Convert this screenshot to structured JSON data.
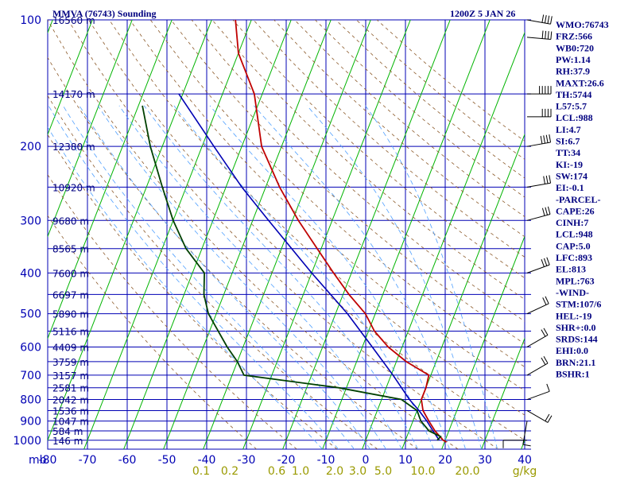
{
  "header": {
    "station_title": "MMVA (76743) Sounding",
    "datetime": "1200Z  5 JAN 26"
  },
  "colors": {
    "grid": "#0000b4",
    "frame": "#000080",
    "isotherm_skew": "#00b400",
    "dry_adiabat": "#8c5a2a",
    "moist_adiabat": "#50a0ff",
    "mixing_ratio_label": "#9a9a00",
    "temperature": "#c00000",
    "dewpoint": "#004000",
    "parcel": "#0000b4",
    "wind": "#000000"
  },
  "chart_data": {
    "type": "skew-t",
    "title": "MMVA (76743) Sounding",
    "pressure_axis_label": "mb",
    "pressure_ticks": [
      100,
      200,
      300,
      400,
      500,
      600,
      700,
      800,
      900,
      1000
    ],
    "pressure_range_mb": [
      100,
      1050
    ],
    "temperature_ticks": [
      "-80",
      "-70",
      "-60",
      "-50",
      "-40",
      "-30",
      "-20",
      "-10",
      "0",
      "10",
      "20",
      "30",
      "40"
    ],
    "temperature_range_c": [
      -80,
      40
    ],
    "mixing_ratio_labels": [
      "0.1",
      "0.2",
      "0.6",
      "1.0",
      "2.0",
      "3.0",
      "5.0",
      "10.0",
      "20.0",
      "g/kg"
    ],
    "mixing_ratio_values_gkg": [
      0.1,
      0.2,
      0.6,
      1.0,
      2.0,
      3.0,
      5.0,
      10.0,
      20.0
    ],
    "height_labels": [
      {
        "p": 100,
        "label": "16560 m"
      },
      {
        "p": 150,
        "label": "14170 m"
      },
      {
        "p": 200,
        "label": "12380 m"
      },
      {
        "p": 250,
        "label": "10920 m"
      },
      {
        "p": 300,
        "label": "9680 m"
      },
      {
        "p": 350,
        "label": "8565 m"
      },
      {
        "p": 400,
        "label": "7600 m"
      },
      {
        "p": 450,
        "label": "6697 m"
      },
      {
        "p": 500,
        "label": "5890 m"
      },
      {
        "p": 550,
        "label": "5116 m"
      },
      {
        "p": 600,
        "label": "4409 m"
      },
      {
        "p": 650,
        "label": "3759 m"
      },
      {
        "p": 700,
        "label": "3157 m"
      },
      {
        "p": 750,
        "label": "2581 m"
      },
      {
        "p": 800,
        "label": "2042 m"
      },
      {
        "p": 850,
        "label": "1536 m"
      },
      {
        "p": 900,
        "label": "1047 m"
      },
      {
        "p": 950,
        "label": "584 m"
      },
      {
        "p": 1000,
        "label": "146 m"
      }
    ],
    "temperature_profile": [
      {
        "p": 1010,
        "t": 20.5
      },
      {
        "p": 1000,
        "t": 19.5
      },
      {
        "p": 950,
        "t": 16.5
      },
      {
        "p": 900,
        "t": 14.0
      },
      {
        "p": 850,
        "t": 11.5
      },
      {
        "p": 800,
        "t": 10.0
      },
      {
        "p": 750,
        "t": 10.0
      },
      {
        "p": 700,
        "t": 9.5
      },
      {
        "p": 650,
        "t": 2.5
      },
      {
        "p": 600,
        "t": -3.5
      },
      {
        "p": 550,
        "t": -8.5
      },
      {
        "p": 500,
        "t": -12.5
      },
      {
        "p": 450,
        "t": -18.5
      },
      {
        "p": 400,
        "t": -24.5
      },
      {
        "p": 350,
        "t": -31.0
      },
      {
        "p": 300,
        "t": -38.5
      },
      {
        "p": 250,
        "t": -46.5
      },
      {
        "p": 200,
        "t": -55.0
      },
      {
        "p": 150,
        "t": -62.0
      },
      {
        "p": 120,
        "t": -70.0
      },
      {
        "p": 100,
        "t": -74.0
      }
    ],
    "dewpoint_profile": [
      {
        "p": 1000,
        "td": 18.0
      },
      {
        "p": 980,
        "td": 18.5
      },
      {
        "p": 950,
        "td": 15.0
      },
      {
        "p": 900,
        "td": 12.0
      },
      {
        "p": 850,
        "td": 10.0
      },
      {
        "p": 800,
        "td": 5.0
      },
      {
        "p": 750,
        "td": -12.0
      },
      {
        "p": 700,
        "td": -37.0
      },
      {
        "p": 650,
        "td": -40.0
      },
      {
        "p": 600,
        "td": -44.0
      },
      {
        "p": 500,
        "td": -52.0
      },
      {
        "p": 450,
        "td": -55.0
      },
      {
        "p": 400,
        "td": -57.0
      },
      {
        "p": 350,
        "td": -64.0
      },
      {
        "p": 300,
        "td": -70.0
      },
      {
        "p": 250,
        "td": -76.0
      },
      {
        "p": 200,
        "td": -83.0
      },
      {
        "p": 160,
        "td": -89.0
      }
    ],
    "parcel_profile": [
      {
        "p": 1000,
        "t": 18.5
      },
      {
        "p": 950,
        "t": 16.0
      },
      {
        "p": 900,
        "t": 13.5
      },
      {
        "p": 850,
        "t": 10.5
      },
      {
        "p": 800,
        "t": 7.0
      },
      {
        "p": 700,
        "t": 0.5
      },
      {
        "p": 600,
        "t": -7.5
      },
      {
        "p": 500,
        "t": -17.0
      },
      {
        "p": 400,
        "t": -30.0
      },
      {
        "p": 300,
        "t": -46.0
      },
      {
        "p": 250,
        "t": -56.0
      },
      {
        "p": 200,
        "t": -67.0
      },
      {
        "p": 150,
        "t": -81.0
      }
    ],
    "wind_barbs": [
      {
        "p": 100,
        "dir": 280,
        "spd": 35
      },
      {
        "p": 110,
        "dir": 275,
        "spd": 40
      },
      {
        "p": 150,
        "dir": 270,
        "spd": 45
      },
      {
        "p": 170,
        "dir": 270,
        "spd": 40
      },
      {
        "p": 200,
        "dir": 260,
        "spd": 35
      },
      {
        "p": 250,
        "dir": 260,
        "spd": 30
      },
      {
        "p": 300,
        "dir": 255,
        "spd": 30
      },
      {
        "p": 400,
        "dir": 250,
        "spd": 25
      },
      {
        "p": 500,
        "dir": 245,
        "spd": 20
      },
      {
        "p": 600,
        "dir": 240,
        "spd": 15
      },
      {
        "p": 700,
        "dir": 240,
        "spd": 15
      },
      {
        "p": 800,
        "dir": 250,
        "spd": 10
      },
      {
        "p": 850,
        "dir": 300,
        "spd": 15
      },
      {
        "p": 900,
        "dir": 10,
        "spd": 10
      },
      {
        "p": 1000,
        "dir": 90,
        "spd": 5
      }
    ]
  },
  "indices": [
    "WMO:76743",
    "FRZ:566",
    "WB0:720",
    "PW:1.14",
    "RH:37.9",
    "MAXT:26.6",
    "TH:5744",
    "L57:5.7",
    "LCL:988",
    "LI:4.7",
    "SI:6.7",
    "TT:34",
    "KI:-19",
    "SW:174",
    "EI:-0.1",
    "-PARCEL-",
    "CAPE:26",
    "CINH:7",
    "LCL:948",
    "CAP:5.0",
    "LFC:893",
    "EL:813",
    "MPL:763",
    "-WIND-",
    "STM:107/6",
    "HEL:-19",
    "SHR+:0.0",
    "SRDS:144",
    "EHI:0.0",
    "BRN:21.1",
    "BSHR:1"
  ]
}
